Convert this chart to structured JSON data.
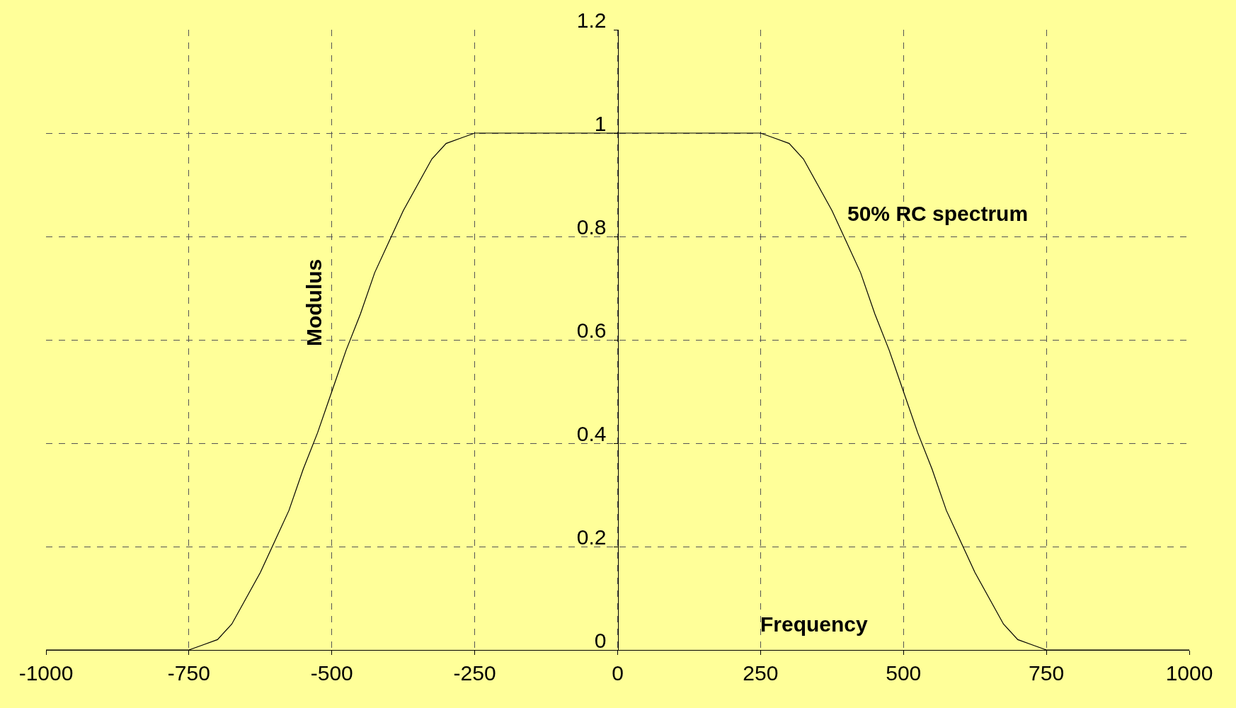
{
  "chart_data": {
    "type": "line",
    "xlabel": "Frequency",
    "ylabel": "Modulus",
    "annotations": [
      "50% RC spectrum"
    ],
    "x": [
      -1000,
      -750,
      -725,
      -700,
      -675,
      -650,
      -625,
      -600,
      -575,
      -550,
      -525,
      -500,
      -475,
      -450,
      -425,
      -400,
      -375,
      -350,
      -325,
      -300,
      -275,
      -250,
      0,
      250,
      275,
      300,
      325,
      350,
      375,
      400,
      425,
      450,
      475,
      500,
      525,
      550,
      575,
      600,
      625,
      650,
      675,
      700,
      725,
      750,
      1000
    ],
    "series": [
      {
        "color": "#000000",
        "values": [
          0,
          0,
          0.01,
          0.02,
          0.05,
          0.1,
          0.15,
          0.21,
          0.27,
          0.35,
          0.42,
          0.5,
          0.58,
          0.65,
          0.73,
          0.79,
          0.85,
          0.9,
          0.95,
          0.98,
          0.99,
          1,
          1,
          1,
          0.99,
          0.98,
          0.95,
          0.9,
          0.85,
          0.79,
          0.73,
          0.65,
          0.58,
          0.5,
          0.42,
          0.35,
          0.27,
          0.21,
          0.15,
          0.1,
          0.05,
          0.02,
          0.01,
          0,
          0
        ]
      }
    ],
    "xlim": [
      -1000,
      1000
    ],
    "xticks": [
      -1000,
      -750,
      -500,
      -250,
      0,
      250,
      500,
      750,
      1000
    ],
    "ylim": [
      0,
      1.2
    ],
    "yticks": [
      0,
      0.2,
      0.4,
      0.6,
      0.8,
      1,
      1.2
    ],
    "grid": true,
    "marker": "none",
    "line_style": "solid"
  }
}
